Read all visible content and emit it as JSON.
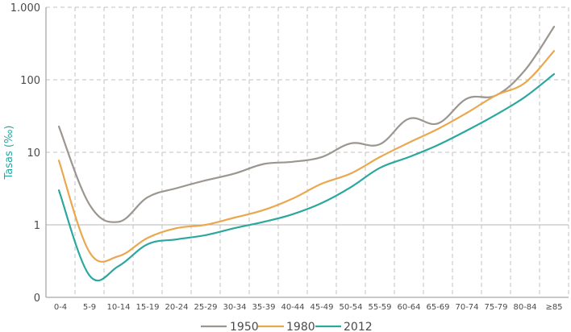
{
  "chart_data": {
    "type": "line",
    "title": "",
    "xlabel": "",
    "ylabel": "Tasas (‰)",
    "yscale": "log",
    "ylim": [
      0.1,
      1000
    ],
    "y_ticks": [
      {
        "value": 1000,
        "label": "1.000"
      },
      {
        "value": 100,
        "label": "100"
      },
      {
        "value": 10,
        "label": "10"
      },
      {
        "value": 1,
        "label": "1"
      },
      {
        "value": 0.1,
        "label": "0"
      }
    ],
    "categories": [
      "0-4",
      "5-9",
      "10-14",
      "15-19",
      "20-24",
      "25-29",
      "30-34",
      "35-39",
      "40-44",
      "45-49",
      "50-54",
      "55-59",
      "60-64",
      "65-69",
      "70-74",
      "75-79",
      "80-84",
      "≥85"
    ],
    "grid": true,
    "legend_position": "bottom",
    "series": [
      {
        "name": "1950",
        "color": "#9b968f",
        "values": [
          22.7,
          1.9,
          1.1,
          2.4,
          3.2,
          4.1,
          5.1,
          6.9,
          7.4,
          8.6,
          13.3,
          12.9,
          29,
          25,
          55,
          61,
          136,
          540
        ]
      },
      {
        "name": "1980",
        "color": "#e9a84e",
        "values": [
          7.7,
          0.42,
          0.37,
          0.66,
          0.9,
          1.0,
          1.26,
          1.6,
          2.3,
          3.7,
          5.1,
          8.6,
          13.6,
          21,
          35,
          61,
          91,
          250
        ]
      },
      {
        "name": "2012",
        "color": "#2ba79f",
        "values": [
          3.0,
          0.2,
          0.27,
          0.54,
          0.63,
          0.72,
          0.9,
          1.1,
          1.4,
          2.0,
          3.3,
          6.1,
          8.6,
          12.6,
          20,
          33,
          58,
          120
        ]
      }
    ]
  },
  "legend": {
    "items": [
      {
        "label": "1950",
        "color": "#9b968f"
      },
      {
        "label": "1980",
        "color": "#e9a84e"
      },
      {
        "label": "2012",
        "color": "#2ba79f"
      }
    ]
  }
}
